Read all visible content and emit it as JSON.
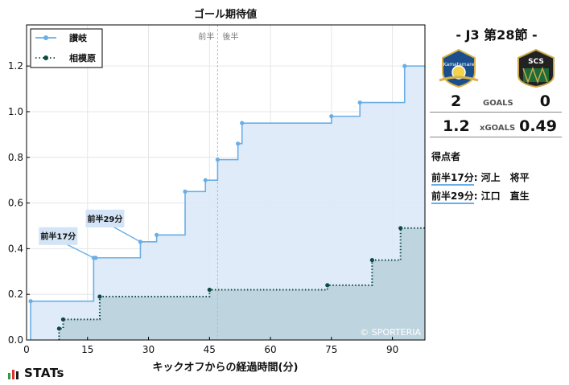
{
  "chart_data": {
    "type": "line",
    "step": true,
    "title": "ゴール期待値",
    "xlabel": "キックオフからの経過時間(分)",
    "ylabel": "",
    "xlim": [
      0,
      98
    ],
    "ylim": [
      0,
      1.38
    ],
    "xticks": [
      0,
      15,
      30,
      45,
      60,
      75,
      90
    ],
    "yticks": [
      0.0,
      0.2,
      0.4,
      0.6,
      0.8,
      1.0,
      1.2
    ],
    "ytick_labels": [
      "0.0",
      "0.2",
      "0.4",
      "0.6",
      "0.8",
      "1.0",
      "1.2"
    ],
    "grid": true,
    "legend_position": "top-left",
    "halftime_x": 47,
    "halftime_labels": [
      "前半",
      "後半"
    ],
    "watermark": "© SPORTERIA",
    "series": [
      {
        "name": "讃岐",
        "color": "#6aaee6",
        "fill": "#dce9f7",
        "style": "solid",
        "points": [
          [
            1,
            0.17
          ],
          [
            16.5,
            0.36
          ],
          [
            17,
            0.36
          ],
          [
            28,
            0.43
          ],
          [
            32,
            0.46
          ],
          [
            39,
            0.65
          ],
          [
            44,
            0.7
          ],
          [
            47,
            0.79
          ],
          [
            52,
            0.86
          ],
          [
            53,
            0.95
          ],
          [
            75,
            0.98
          ],
          [
            82,
            1.04
          ],
          [
            93,
            1.2
          ],
          [
            98,
            1.2
          ]
        ]
      },
      {
        "name": "相模原",
        "color": "#0e4a42",
        "fill": "#b8d0da",
        "style": "dotted",
        "points": [
          [
            8,
            0.05
          ],
          [
            9,
            0.09
          ],
          [
            18,
            0.19
          ],
          [
            45,
            0.22
          ],
          [
            74,
            0.24
          ],
          [
            85,
            0.35
          ],
          [
            92,
            0.49
          ],
          [
            98,
            0.49
          ]
        ]
      }
    ],
    "annotations": [
      {
        "label": "前半17分",
        "x": 16.5,
        "y": 0.36
      },
      {
        "label": "前半29分",
        "x": 28,
        "y": 0.43
      }
    ]
  },
  "match": {
    "title": "- J3 第28節 -",
    "home_score": "2",
    "away_score": "0",
    "goals_label": "GOALS",
    "home_xg": "1.2",
    "away_xg": "0.49",
    "xg_label": "xGOALS",
    "away_logo_text": "SCS",
    "home_logo_text": "Kamatamare"
  },
  "scorers": {
    "title": "得点者",
    "items": [
      {
        "time": "前半17分",
        "name": ": 河上　将平"
      },
      {
        "time": "前半29分",
        "name": ": 江口　直生"
      }
    ]
  },
  "brand": {
    "text": "STATs"
  }
}
